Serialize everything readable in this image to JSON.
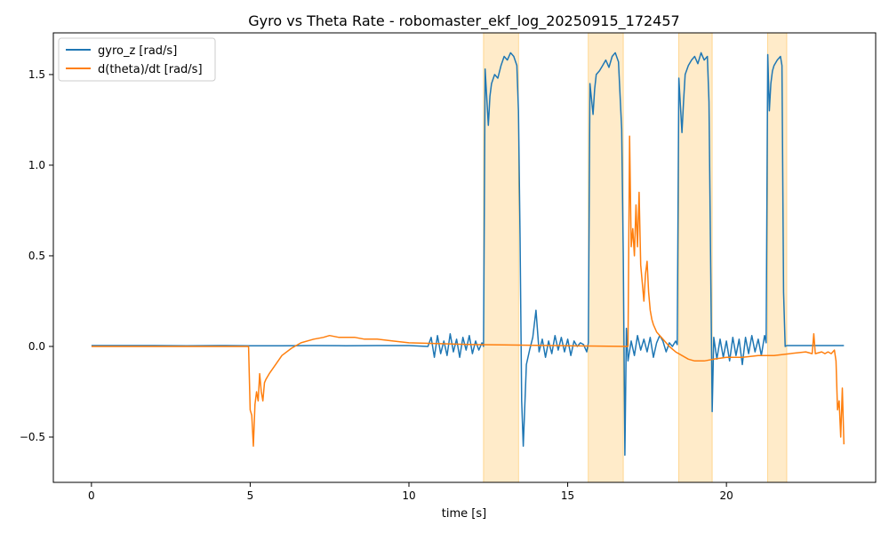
{
  "chart_data": {
    "type": "line",
    "title": "Gyro vs Theta Rate - robomaster_ekf_log_20250915_172457",
    "xlabel": "time [s]",
    "ylabel": "",
    "xlim": [
      -1.2,
      24.7
    ],
    "ylim": [
      -0.75,
      1.73
    ],
    "x_ticks": [
      0,
      5,
      10,
      15,
      20
    ],
    "x_tick_labels": [
      "0",
      "5",
      "10",
      "15",
      "20"
    ],
    "y_ticks": [
      -0.5,
      0.0,
      0.5,
      1.0,
      1.5
    ],
    "y_tick_labels": [
      "−0.5",
      "0.0",
      "0.5",
      "1.0",
      "1.5"
    ],
    "grid": false,
    "legend": {
      "placement": "top-left"
    },
    "colors": {
      "gyro": "#1f77b4",
      "theta": "#ff7f0e",
      "highlight": "#ffe7c0",
      "highlight_edge": "#ffc25a"
    },
    "highlight_spans": [
      {
        "x0": 12.35,
        "x1": 13.45
      },
      {
        "x0": 15.65,
        "x1": 16.75
      },
      {
        "x0": 18.5,
        "x1": 19.55
      },
      {
        "x0": 21.3,
        "x1": 21.9
      }
    ],
    "series": [
      {
        "name": "gyro_z [rad/s]",
        "x": [
          0,
          1,
          2,
          3,
          4,
          5,
          6,
          7,
          8,
          9,
          10,
          10.6,
          10.7,
          10.8,
          10.9,
          11.0,
          11.1,
          11.2,
          11.3,
          11.4,
          11.5,
          11.6,
          11.7,
          11.8,
          11.9,
          12.0,
          12.1,
          12.2,
          12.3,
          12.35,
          12.4,
          12.5,
          12.55,
          12.6,
          12.7,
          12.8,
          12.9,
          13.0,
          13.1,
          13.2,
          13.3,
          13.4,
          13.45,
          13.5,
          13.55,
          13.6,
          13.7,
          13.8,
          13.9,
          14.0,
          14.1,
          14.2,
          14.3,
          14.4,
          14.5,
          14.6,
          14.7,
          14.8,
          14.9,
          15.0,
          15.1,
          15.2,
          15.3,
          15.4,
          15.5,
          15.6,
          15.65,
          15.7,
          15.8,
          15.85,
          15.9,
          16.0,
          16.1,
          16.2,
          16.3,
          16.4,
          16.5,
          16.6,
          16.7,
          16.75,
          16.8,
          16.85,
          16.9,
          17.0,
          17.1,
          17.2,
          17.3,
          17.4,
          17.5,
          17.6,
          17.7,
          17.8,
          17.9,
          18.0,
          18.1,
          18.2,
          18.3,
          18.4,
          18.45,
          18.5,
          18.6,
          18.65,
          18.7,
          18.8,
          18.9,
          19.0,
          19.1,
          19.2,
          19.3,
          19.4,
          19.45,
          19.5,
          19.55,
          19.6,
          19.7,
          19.8,
          19.9,
          20.0,
          20.1,
          20.2,
          20.3,
          20.4,
          20.5,
          20.6,
          20.7,
          20.8,
          20.9,
          21.0,
          21.1,
          21.2,
          21.25,
          21.3,
          21.35,
          21.4,
          21.45,
          21.5,
          21.6,
          21.7,
          21.75,
          21.8,
          21.85,
          21.9,
          22.0,
          22.5,
          23.0,
          23.7
        ],
        "y": [
          0.005,
          0.005,
          0.005,
          0.004,
          0.005,
          0.004,
          0.004,
          0.005,
          0.004,
          0.005,
          0.005,
          0.0,
          0.05,
          -0.06,
          0.06,
          -0.04,
          0.03,
          -0.05,
          0.07,
          -0.03,
          0.04,
          -0.06,
          0.05,
          -0.02,
          0.06,
          -0.04,
          0.03,
          -0.02,
          0.02,
          0.0,
          1.53,
          1.22,
          1.38,
          1.45,
          1.5,
          1.48,
          1.55,
          1.6,
          1.58,
          1.62,
          1.6,
          1.55,
          1.3,
          0.6,
          -0.3,
          -0.55,
          -0.1,
          -0.02,
          0.05,
          0.2,
          -0.03,
          0.04,
          -0.06,
          0.03,
          -0.04,
          0.06,
          -0.02,
          0.05,
          -0.03,
          0.04,
          -0.05,
          0.03,
          0.0,
          0.02,
          0.01,
          -0.03,
          0.02,
          1.45,
          1.28,
          1.42,
          1.5,
          1.52,
          1.55,
          1.58,
          1.54,
          1.6,
          1.62,
          1.57,
          1.2,
          0.5,
          -0.6,
          0.1,
          -0.08,
          0.03,
          -0.05,
          0.06,
          -0.02,
          0.04,
          -0.03,
          0.05,
          -0.06,
          0.02,
          0.06,
          0.03,
          -0.03,
          0.02,
          0.0,
          0.03,
          0.01,
          1.48,
          1.18,
          1.35,
          1.5,
          1.55,
          1.58,
          1.6,
          1.56,
          1.62,
          1.58,
          1.6,
          1.35,
          0.5,
          -0.36,
          0.05,
          -0.07,
          0.04,
          -0.06,
          0.03,
          -0.08,
          0.05,
          -0.05,
          0.04,
          -0.1,
          0.05,
          -0.04,
          0.06,
          -0.03,
          0.04,
          -0.05,
          0.06,
          0.02,
          1.61,
          1.3,
          1.45,
          1.52,
          1.55,
          1.58,
          1.6,
          1.55,
          0.3,
          0.0,
          0.005,
          0.005,
          0.005,
          0.005,
          0.005
        ]
      },
      {
        "name": "d(theta)/dt [rad/s]",
        "x": [
          0,
          1,
          2,
          3,
          4,
          4.95,
          5.0,
          5.05,
          5.1,
          5.15,
          5.2,
          5.25,
          5.3,
          5.35,
          5.4,
          5.45,
          5.5,
          5.6,
          5.8,
          6.0,
          6.3,
          6.6,
          7.0,
          7.3,
          7.5,
          7.8,
          8.0,
          8.3,
          8.6,
          9.0,
          9.5,
          10.0,
          11.0,
          12.0,
          13.0,
          14.0,
          15.0,
          16.0,
          16.9,
          16.95,
          17.0,
          17.05,
          17.1,
          17.15,
          17.2,
          17.25,
          17.3,
          17.35,
          17.4,
          17.45,
          17.5,
          17.55,
          17.6,
          17.65,
          17.7,
          17.8,
          17.9,
          18.0,
          18.2,
          18.4,
          18.6,
          18.8,
          19.0,
          19.3,
          19.6,
          20.0,
          20.5,
          21.0,
          21.5,
          22.0,
          22.5,
          22.7,
          22.75,
          22.8,
          23.0,
          23.1,
          23.2,
          23.3,
          23.4,
          23.45,
          23.5,
          23.55,
          23.6,
          23.65,
          23.7
        ],
        "y": [
          0.0,
          0.0,
          0.0,
          0.0,
          0.0,
          0.0,
          -0.35,
          -0.38,
          -0.55,
          -0.32,
          -0.25,
          -0.3,
          -0.15,
          -0.25,
          -0.3,
          -0.2,
          -0.18,
          -0.15,
          -0.1,
          -0.05,
          -0.01,
          0.02,
          0.04,
          0.05,
          0.06,
          0.05,
          0.05,
          0.05,
          0.04,
          0.04,
          0.03,
          0.02,
          0.015,
          0.01,
          0.008,
          0.006,
          0.004,
          0.002,
          0.0,
          1.16,
          0.55,
          0.65,
          0.5,
          0.78,
          0.55,
          0.85,
          0.45,
          0.35,
          0.25,
          0.4,
          0.47,
          0.3,
          0.2,
          0.15,
          0.12,
          0.08,
          0.06,
          0.04,
          0.0,
          -0.03,
          -0.05,
          -0.07,
          -0.08,
          -0.08,
          -0.07,
          -0.06,
          -0.06,
          -0.05,
          -0.05,
          -0.04,
          -0.03,
          -0.04,
          0.07,
          -0.04,
          -0.03,
          -0.04,
          -0.03,
          -0.04,
          -0.02,
          -0.08,
          -0.35,
          -0.3,
          -0.5,
          -0.23,
          -0.54
        ]
      }
    ]
  }
}
